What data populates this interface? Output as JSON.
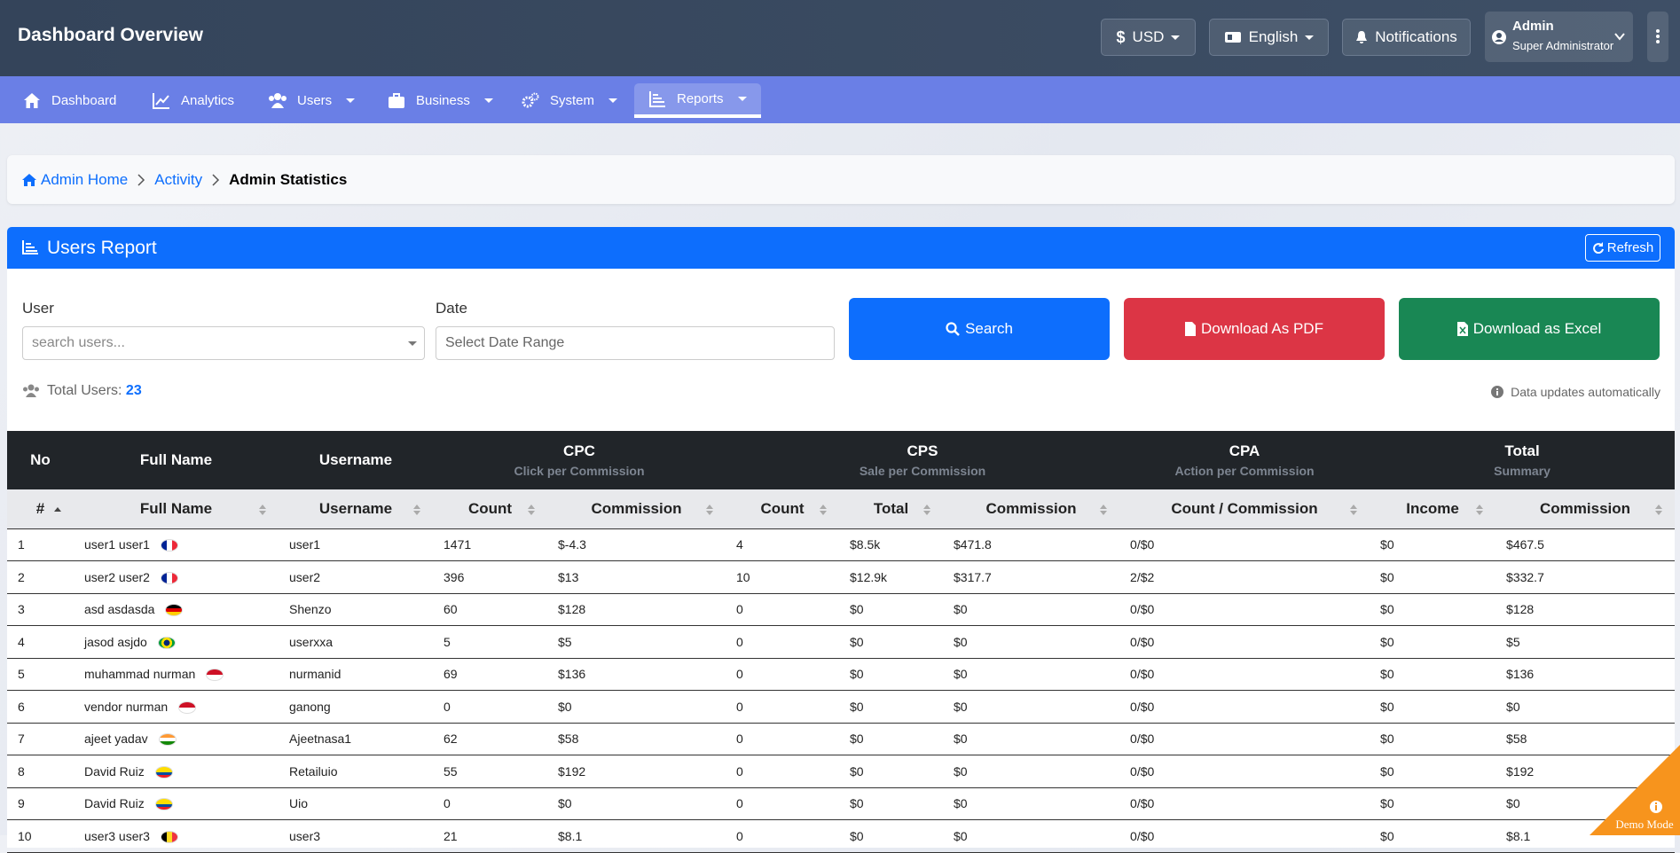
{
  "header": {
    "title": "Dashboard Overview",
    "currency": "USD",
    "language": "English",
    "notifications": "Notifications",
    "user_name": "Admin",
    "user_role": "Super Administrator"
  },
  "nav": [
    {
      "label": "Dashboard",
      "dropdown": false
    },
    {
      "label": "Analytics",
      "dropdown": false
    },
    {
      "label": "Users",
      "dropdown": true
    },
    {
      "label": "Business",
      "dropdown": true
    },
    {
      "label": "System",
      "dropdown": true
    },
    {
      "label": "Reports",
      "dropdown": true,
      "active": true
    }
  ],
  "breadcrumb": [
    "Admin Home",
    "Activity",
    "Admin Statistics"
  ],
  "report": {
    "title": "Users Report",
    "refresh": "Refresh",
    "user_label": "User",
    "user_placeholder": "search users...",
    "date_label": "Date",
    "date_placeholder": "Select Date Range",
    "search": "Search",
    "pdf": "Download As PDF",
    "excel": "Download as Excel",
    "total_label": "Total Users:",
    "total": 23,
    "note": "Data updates automatically"
  },
  "table": {
    "groups": [
      {
        "label": "No",
        "span": 1
      },
      {
        "label": "Full Name",
        "span": 1
      },
      {
        "label": "Username",
        "span": 1
      },
      {
        "label": "CPC",
        "sub": "Click per Commission",
        "span": 2
      },
      {
        "label": "CPS",
        "sub": "Sale per Commission",
        "span": 3
      },
      {
        "label": "CPA",
        "sub": "Action per Commission",
        "span": 1
      },
      {
        "label": "Total",
        "sub": "Summary",
        "span": 2
      }
    ],
    "columns": [
      "#",
      "Full Name",
      "Username",
      "Count",
      "Commission",
      "Count",
      "Total",
      "Commission",
      "Count / Commission",
      "Income",
      "Commission"
    ],
    "rows": [
      [
        "1",
        "user1 user1",
        "user1",
        "1471",
        "$-4.3",
        "4",
        "$8.5k",
        "$471.8",
        "0/$0",
        "$0",
        "$467.5"
      ],
      [
        "2",
        "user2 user2",
        "user2",
        "396",
        "$13",
        "10",
        "$12.9k",
        "$317.7",
        "2/$2",
        "$0",
        "$332.7"
      ],
      [
        "3",
        "asd asdasda",
        "Shenzo",
        "60",
        "$128",
        "0",
        "$0",
        "$0",
        "0/$0",
        "$0",
        "$128"
      ],
      [
        "4",
        "jasod asjdo",
        "userxxa",
        "5",
        "$5",
        "0",
        "$0",
        "$0",
        "0/$0",
        "$0",
        "$5"
      ],
      [
        "5",
        "muhammad nurman",
        "nurmanid",
        "69",
        "$136",
        "0",
        "$0",
        "$0",
        "0/$0",
        "$0",
        "$136"
      ],
      [
        "6",
        "vendor nurman",
        "ganong",
        "0",
        "$0",
        "0",
        "$0",
        "$0",
        "0/$0",
        "$0",
        "$0"
      ],
      [
        "7",
        "ajeet yadav",
        "Ajeetnasa1",
        "62",
        "$58",
        "0",
        "$0",
        "$0",
        "0/$0",
        "$0",
        "$58"
      ],
      [
        "8",
        "David Ruiz",
        "Retailuio",
        "55",
        "$192",
        "0",
        "$0",
        "$0",
        "0/$0",
        "$0",
        "$192"
      ],
      [
        "9",
        "David Ruiz",
        "Uio",
        "0",
        "$0",
        "0",
        "$0",
        "$0",
        "0/$0",
        "$0",
        "$0"
      ],
      [
        "10",
        "user3 user3",
        "user3",
        "21",
        "$8.1",
        "0",
        "$0",
        "$0",
        "0/$0",
        "$0",
        "$8.1"
      ]
    ],
    "flags": [
      {
        "colors": [
          "#002395",
          "#ffffff",
          "#ed2939"
        ],
        "stripes": "vertical"
      },
      {
        "colors": [
          "#002395",
          "#ffffff",
          "#ed2939"
        ],
        "stripes": "vertical"
      },
      {
        "colors": [
          "#000000",
          "#dd0000",
          "#ffce00"
        ],
        "stripes": "horizontal"
      },
      {
        "colors": [
          "#009c3b",
          "#ffdf00",
          "#002776"
        ],
        "stripes": "center"
      },
      {
        "colors": [
          "#ce1126",
          "#ffffff"
        ],
        "stripes": "horizontal"
      },
      {
        "colors": [
          "#ce1126",
          "#ffffff"
        ],
        "stripes": "horizontal"
      },
      {
        "colors": [
          "#ff9933",
          "#ffffff",
          "#138808"
        ],
        "stripes": "horizontal"
      },
      {
        "colors": [
          "#ffdd00",
          "#ffdd00",
          "#034ea2",
          "#ed1c24"
        ],
        "stripes": "horizontal"
      },
      {
        "colors": [
          "#ffdd00",
          "#ffdd00",
          "#034ea2",
          "#ed1c24"
        ],
        "stripes": "horizontal"
      },
      {
        "colors": [
          "#000000",
          "#fdda24",
          "#ef3340"
        ],
        "stripes": "vertical"
      }
    ]
  },
  "demo": "Demo Mode"
}
